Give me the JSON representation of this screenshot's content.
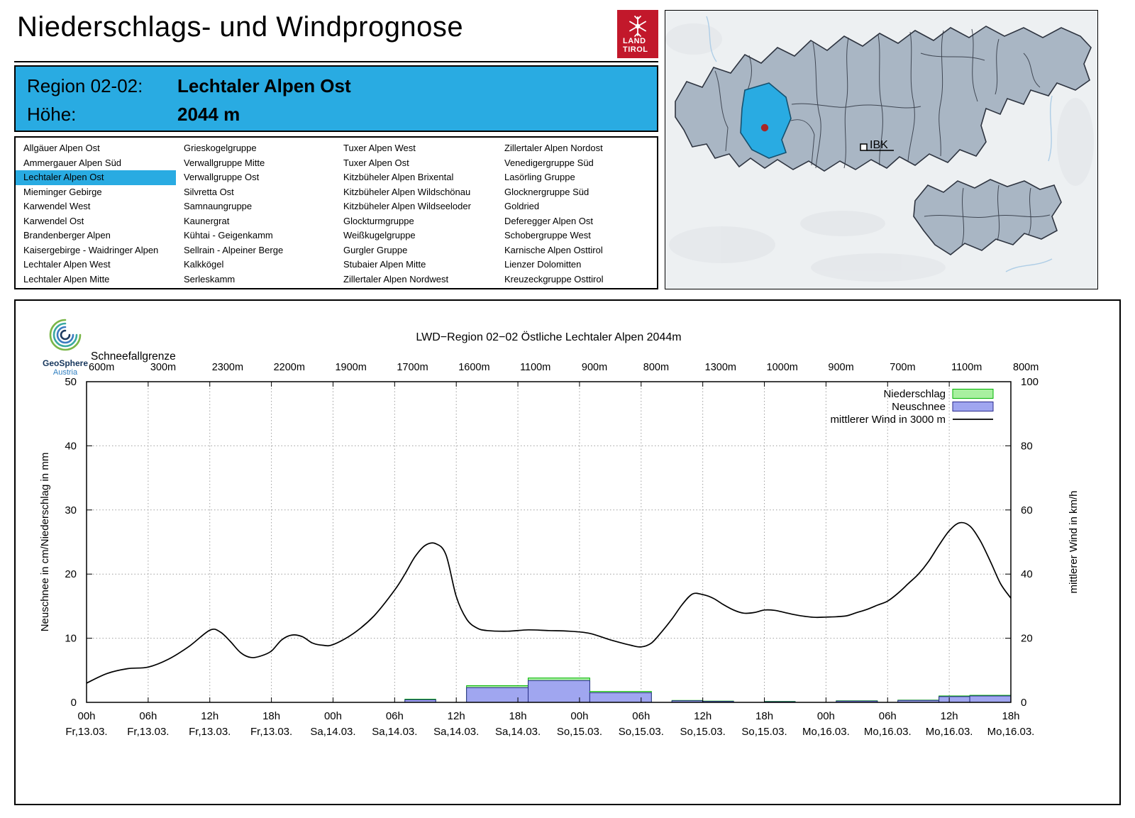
{
  "page": {
    "title": "Niederschlags- und Windprognose"
  },
  "tirol_logo": {
    "line1": "LAND",
    "line2": "TIROL"
  },
  "region_box": {
    "region_label": "Region 02-02:",
    "region_value": "Lechtaler Alpen Ost",
    "height_label": "Höhe:",
    "height_value": "2044 m"
  },
  "map": {
    "marker_label": "IBK"
  },
  "region_list": {
    "selected": "Lechtaler Alpen Ost",
    "columns": [
      [
        "Allgäuer Alpen Ost",
        "Ammergauer Alpen Süd",
        "Lechtaler Alpen Ost",
        "Mieminger Gebirge",
        "Karwendel West",
        "Karwendel Ost",
        "Brandenberger Alpen",
        "Kaisergebirge - Waidringer Alpen",
        "Lechtaler Alpen West",
        "Lechtaler Alpen Mitte"
      ],
      [
        "Grieskogelgruppe",
        "Verwallgruppe Mitte",
        "Verwallgruppe Ost",
        "Silvretta Ost",
        "Samnaungruppe",
        "Kaunergrat",
        "Kühtai - Geigenkamm",
        "Sellrain - Alpeiner Berge",
        "Kalkkögel",
        "Serleskamm"
      ],
      [
        "Tuxer Alpen West",
        "Tuxer Alpen Ost",
        "Kitzbüheler Alpen Brixental",
        "Kitzbüheler Alpen Wildschönau",
        "Kitzbüheler Alpen Wildseeloder",
        "Glockturmgruppe",
        "Weißkugelgruppe",
        "Gurgler Gruppe",
        "Stubaier Alpen Mitte",
        "Zillertaler Alpen Nordwest"
      ],
      [
        "Zillertaler Alpen Nordost",
        "Venedigergruppe Süd",
        "Lasörling Gruppe",
        "Glocknergruppe Süd",
        "Goldried",
        "Deferegger Alpen Ost",
        "Schobergruppe West",
        "Karnische Alpen Osttirol",
        "Lienzer Dolomitten",
        "Kreuzeckgruppe Osttirol"
      ]
    ]
  },
  "chart": {
    "brand_name": "GeoSphere",
    "brand_sub": "Austria",
    "title": "LWD−Region 02−02 Östliche Lechtaler Alpen 2044m",
    "snowline_label": "Schneefallgrenze",
    "snowline_values": [
      "600m",
      "300m",
      "2300m",
      "2200m",
      "1900m",
      "1700m",
      "1600m",
      "1100m",
      "900m",
      "800m",
      "1300m",
      "1000m",
      "900m",
      "700m",
      "1100m",
      "800m"
    ]
  },
  "colors": {
    "accent_blue": "#29abe2",
    "tirol_red": "#c2182b",
    "grid": "#9e9e9e",
    "map_region": "#a9b6c4",
    "map_border": "#2e3440",
    "wind": "#000000"
  },
  "chart_data": {
    "type": "mixed",
    "title": "LWD−Region 02−02 Östliche Lechtaler Alpen 2044m",
    "ylabel_left": "Neuschnee in cm/Niederschlag in mm",
    "ylabel_right": "mittlerer Wind in km/h",
    "ylim_left": [
      0,
      50
    ],
    "ylim_right": [
      0,
      100
    ],
    "x_range": [
      0,
      90
    ],
    "left_ticks": [
      0,
      10,
      20,
      30,
      40,
      50
    ],
    "right_ticks": [
      0,
      20,
      40,
      60,
      80,
      100
    ],
    "x_ticks": [
      {
        "hour": 0,
        "time": "00h",
        "date": "Fr,13.03."
      },
      {
        "hour": 6,
        "time": "06h",
        "date": "Fr,13.03."
      },
      {
        "hour": 12,
        "time": "12h",
        "date": "Fr,13.03."
      },
      {
        "hour": 18,
        "time": "18h",
        "date": "Fr,13.03."
      },
      {
        "hour": 24,
        "time": "00h",
        "date": "Sa,14.03."
      },
      {
        "hour": 30,
        "time": "06h",
        "date": "Sa,14.03."
      },
      {
        "hour": 36,
        "time": "12h",
        "date": "Sa,14.03."
      },
      {
        "hour": 42,
        "time": "18h",
        "date": "Sa,14.03."
      },
      {
        "hour": 48,
        "time": "00h",
        "date": "So,15.03."
      },
      {
        "hour": 54,
        "time": "06h",
        "date": "So,15.03."
      },
      {
        "hour": 60,
        "time": "12h",
        "date": "So,15.03."
      },
      {
        "hour": 66,
        "time": "18h",
        "date": "So,15.03."
      },
      {
        "hour": 72,
        "time": "00h",
        "date": "Mo,16.03."
      },
      {
        "hour": 78,
        "time": "06h",
        "date": "Mo,16.03."
      },
      {
        "hour": 84,
        "time": "12h",
        "date": "Mo,16.03."
      },
      {
        "hour": 90,
        "time": "18h",
        "date": "Mo,16.03."
      }
    ],
    "snowline_m": [
      600,
      300,
      2300,
      2200,
      1900,
      1700,
      1600,
      1100,
      900,
      800,
      1300,
      1000,
      900,
      700,
      1100,
      800
    ],
    "legend": [
      {
        "label": "Niederschlag",
        "type": "bar",
        "fill": "#a8f0a0",
        "stroke": "#00b400"
      },
      {
        "label": "Neuschnee",
        "type": "bar",
        "fill": "#a0a6f0",
        "stroke": "#2a2a8c"
      },
      {
        "label": "mittlerer Wind in 3000 m",
        "type": "line",
        "stroke": "#000000"
      }
    ],
    "bars": [
      {
        "start": 31,
        "end": 34,
        "niederschlag": 0.5,
        "neuschnee": 0.4
      },
      {
        "start": 37,
        "end": 43,
        "niederschlag": 2.6,
        "neuschnee": 2.3
      },
      {
        "start": 43,
        "end": 49,
        "niederschlag": 3.8,
        "neuschnee": 3.4
      },
      {
        "start": 49,
        "end": 55,
        "niederschlag": 1.7,
        "neuschnee": 1.5
      },
      {
        "start": 57,
        "end": 60,
        "niederschlag": 0.3,
        "neuschnee": 0.25
      },
      {
        "start": 60,
        "end": 63,
        "niederschlag": 0.2,
        "neuschnee": 0.15
      },
      {
        "start": 66,
        "end": 69,
        "niederschlag": 0.15,
        "neuschnee": 0.1
      },
      {
        "start": 73,
        "end": 77,
        "niederschlag": 0.25,
        "neuschnee": 0.2
      },
      {
        "start": 79,
        "end": 83,
        "niederschlag": 0.35,
        "neuschnee": 0.3
      },
      {
        "start": 83,
        "end": 86,
        "niederschlag": 1.0,
        "neuschnee": 0.9
      },
      {
        "start": 86,
        "end": 90,
        "niederschlag": 1.1,
        "neuschnee": 1.0
      }
    ],
    "wind_series_kmh": [
      [
        0,
        6
      ],
      [
        2,
        9
      ],
      [
        4,
        10.5
      ],
      [
        6,
        11
      ],
      [
        8,
        13.5
      ],
      [
        10,
        17.5
      ],
      [
        12,
        22.5
      ],
      [
        13,
        22
      ],
      [
        14,
        19
      ],
      [
        15,
        15.5
      ],
      [
        16,
        14
      ],
      [
        17,
        14.5
      ],
      [
        18,
        16
      ],
      [
        19,
        19.5
      ],
      [
        20,
        21
      ],
      [
        21,
        20.5
      ],
      [
        22,
        18.5
      ],
      [
        23,
        17.8
      ],
      [
        24,
        18
      ],
      [
        26,
        21.5
      ],
      [
        28,
        27
      ],
      [
        30,
        35
      ],
      [
        31,
        40
      ],
      [
        32,
        45.5
      ],
      [
        33,
        49
      ],
      [
        34,
        49.5
      ],
      [
        35,
        46
      ],
      [
        36,
        33
      ],
      [
        37,
        26
      ],
      [
        38,
        23.2
      ],
      [
        39,
        22.4
      ],
      [
        41,
        22.2
      ],
      [
        43,
        22.6
      ],
      [
        45,
        22.4
      ],
      [
        47,
        22.2
      ],
      [
        49,
        21.5
      ],
      [
        51,
        19.5
      ],
      [
        53,
        17.8
      ],
      [
        54,
        17.3
      ],
      [
        55,
        18.5
      ],
      [
        56,
        22
      ],
      [
        57,
        26
      ],
      [
        58,
        30.5
      ],
      [
        59,
        33.8
      ],
      [
        60,
        33.6
      ],
      [
        61,
        32.5
      ],
      [
        62,
        30.5
      ],
      [
        63,
        28.8
      ],
      [
        64,
        27.8
      ],
      [
        65,
        28
      ],
      [
        66,
        28.8
      ],
      [
        67,
        28.7
      ],
      [
        68,
        28
      ],
      [
        69,
        27.3
      ],
      [
        70,
        26.8
      ],
      [
        71,
        26.5
      ],
      [
        72,
        26.6
      ],
      [
        73,
        26.7
      ],
      [
        74,
        27
      ],
      [
        75,
        28
      ],
      [
        76,
        29
      ],
      [
        77,
        30.3
      ],
      [
        78,
        31.6
      ],
      [
        79,
        34
      ],
      [
        80,
        37
      ],
      [
        81,
        40
      ],
      [
        82,
        44
      ],
      [
        83,
        49
      ],
      [
        84,
        53.5
      ],
      [
        85,
        56
      ],
      [
        86,
        55
      ],
      [
        87,
        50.5
      ],
      [
        88,
        44
      ],
      [
        89,
        37
      ],
      [
        90,
        32.5
      ]
    ]
  }
}
